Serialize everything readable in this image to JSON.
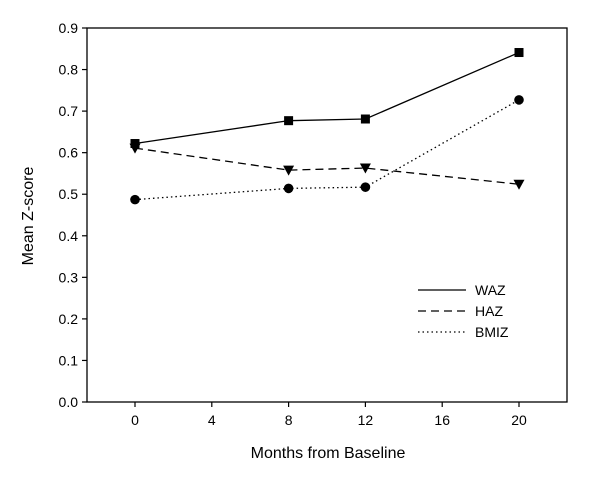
{
  "chart_data": {
    "type": "line",
    "title": "",
    "xlabel": "Months from Baseline",
    "ylabel": "Mean Z-score",
    "xlim": [
      -2.5,
      22.5
    ],
    "ylim": [
      0.0,
      0.9
    ],
    "xticks": [
      0,
      4,
      8,
      12,
      16,
      20
    ],
    "yticks": [
      0.0,
      0.1,
      0.2,
      0.3,
      0.4,
      0.5,
      0.6,
      0.7,
      0.8,
      0.9
    ],
    "xtick_labels": [
      "0",
      "4",
      "8",
      "12",
      "16",
      "20"
    ],
    "ytick_labels": [
      "0.0",
      "0.1",
      "0.2",
      "0.3",
      "0.4",
      "0.5",
      "0.6",
      "0.7",
      "0.8",
      "0.9"
    ],
    "grid": false,
    "legend_position": "lower-right",
    "x": [
      0,
      8,
      12,
      20
    ],
    "series": [
      {
        "name": "WAZ",
        "values": [
          0.622,
          0.677,
          0.681,
          0.841
        ],
        "line_style": "solid",
        "marker": "square",
        "color": "#000000"
      },
      {
        "name": "HAZ",
        "values": [
          0.611,
          0.558,
          0.563,
          0.524
        ],
        "line_style": "dashed",
        "marker": "triangle-down",
        "color": "#000000"
      },
      {
        "name": "BMIZ",
        "values": [
          0.487,
          0.514,
          0.517,
          0.727
        ],
        "line_style": "dotted",
        "marker": "circle",
        "color": "#000000"
      }
    ]
  }
}
